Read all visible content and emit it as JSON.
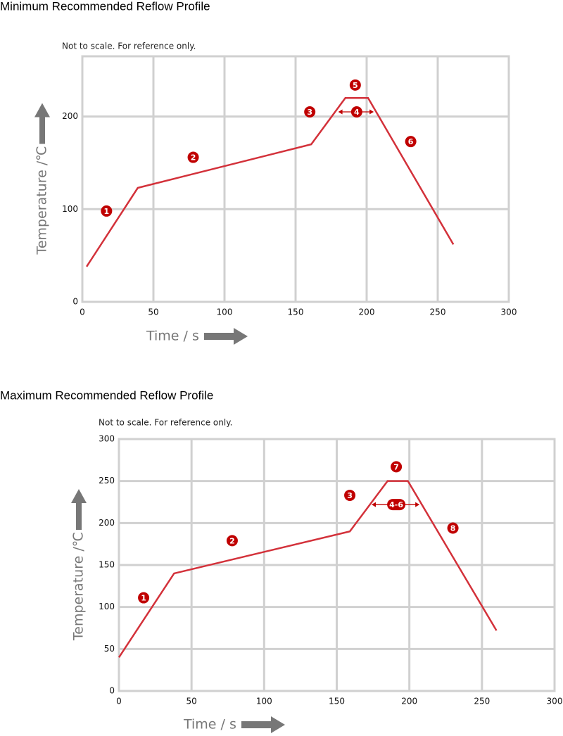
{
  "chart_data": [
    {
      "type": "line",
      "title": "Minimum Recommended Reflow Profile",
      "subtitle": "Not to scale. For reference only.",
      "x_label": "Time / s",
      "y_label": "Temperature /℃",
      "grid": true,
      "xlim": [
        0,
        300
      ],
      "ylim": [
        0,
        265
      ],
      "xticks": [
        0,
        50,
        100,
        150,
        200,
        250,
        300
      ],
      "yticks": [
        0,
        100,
        200
      ],
      "series": [
        {
          "color": "#d3313a",
          "x": [
            3,
            39,
            161,
            185,
            201,
            261
          ],
          "values": [
            38,
            123,
            170,
            220,
            220,
            62
          ]
        }
      ],
      "annotations": [
        {
          "text": "1",
          "x": 17,
          "y": 98
        },
        {
          "text": "2",
          "x": 78,
          "y": 156
        },
        {
          "text": "3",
          "x": 160,
          "y": 205
        },
        {
          "text": "4",
          "x": 193,
          "y": 205,
          "span": [
            180,
            205
          ]
        },
        {
          "text": "5",
          "x": 192,
          "y": 234
        },
        {
          "text": "6",
          "x": 231,
          "y": 173
        }
      ]
    },
    {
      "type": "line",
      "title": "Maximum Recommended Reflow Profile",
      "subtitle": "Not to scale. For reference only.",
      "x_label": "Time / s",
      "y_label": "Temperature /℃",
      "grid": true,
      "xlim": [
        0,
        300
      ],
      "ylim": [
        0,
        300
      ],
      "xticks": [
        0,
        50,
        100,
        150,
        200,
        250,
        300
      ],
      "yticks": [
        0,
        50,
        100,
        150,
        200,
        250,
        300
      ],
      "series": [
        {
          "color": "#d3313a",
          "x": [
            0,
            38,
            159,
            185,
            199,
            260
          ],
          "values": [
            40,
            140,
            190,
            250,
            250,
            72
          ]
        }
      ],
      "annotations": [
        {
          "text": "1",
          "x": 17,
          "y": 111
        },
        {
          "text": "2",
          "x": 78,
          "y": 179
        },
        {
          "text": "3",
          "x": 159,
          "y": 233
        },
        {
          "text": "4-6",
          "x": 191,
          "y": 222,
          "span": [
            174,
            207
          ]
        },
        {
          "text": "7",
          "x": 191,
          "y": 267
        },
        {
          "text": "8",
          "x": 230,
          "y": 194
        }
      ]
    }
  ]
}
